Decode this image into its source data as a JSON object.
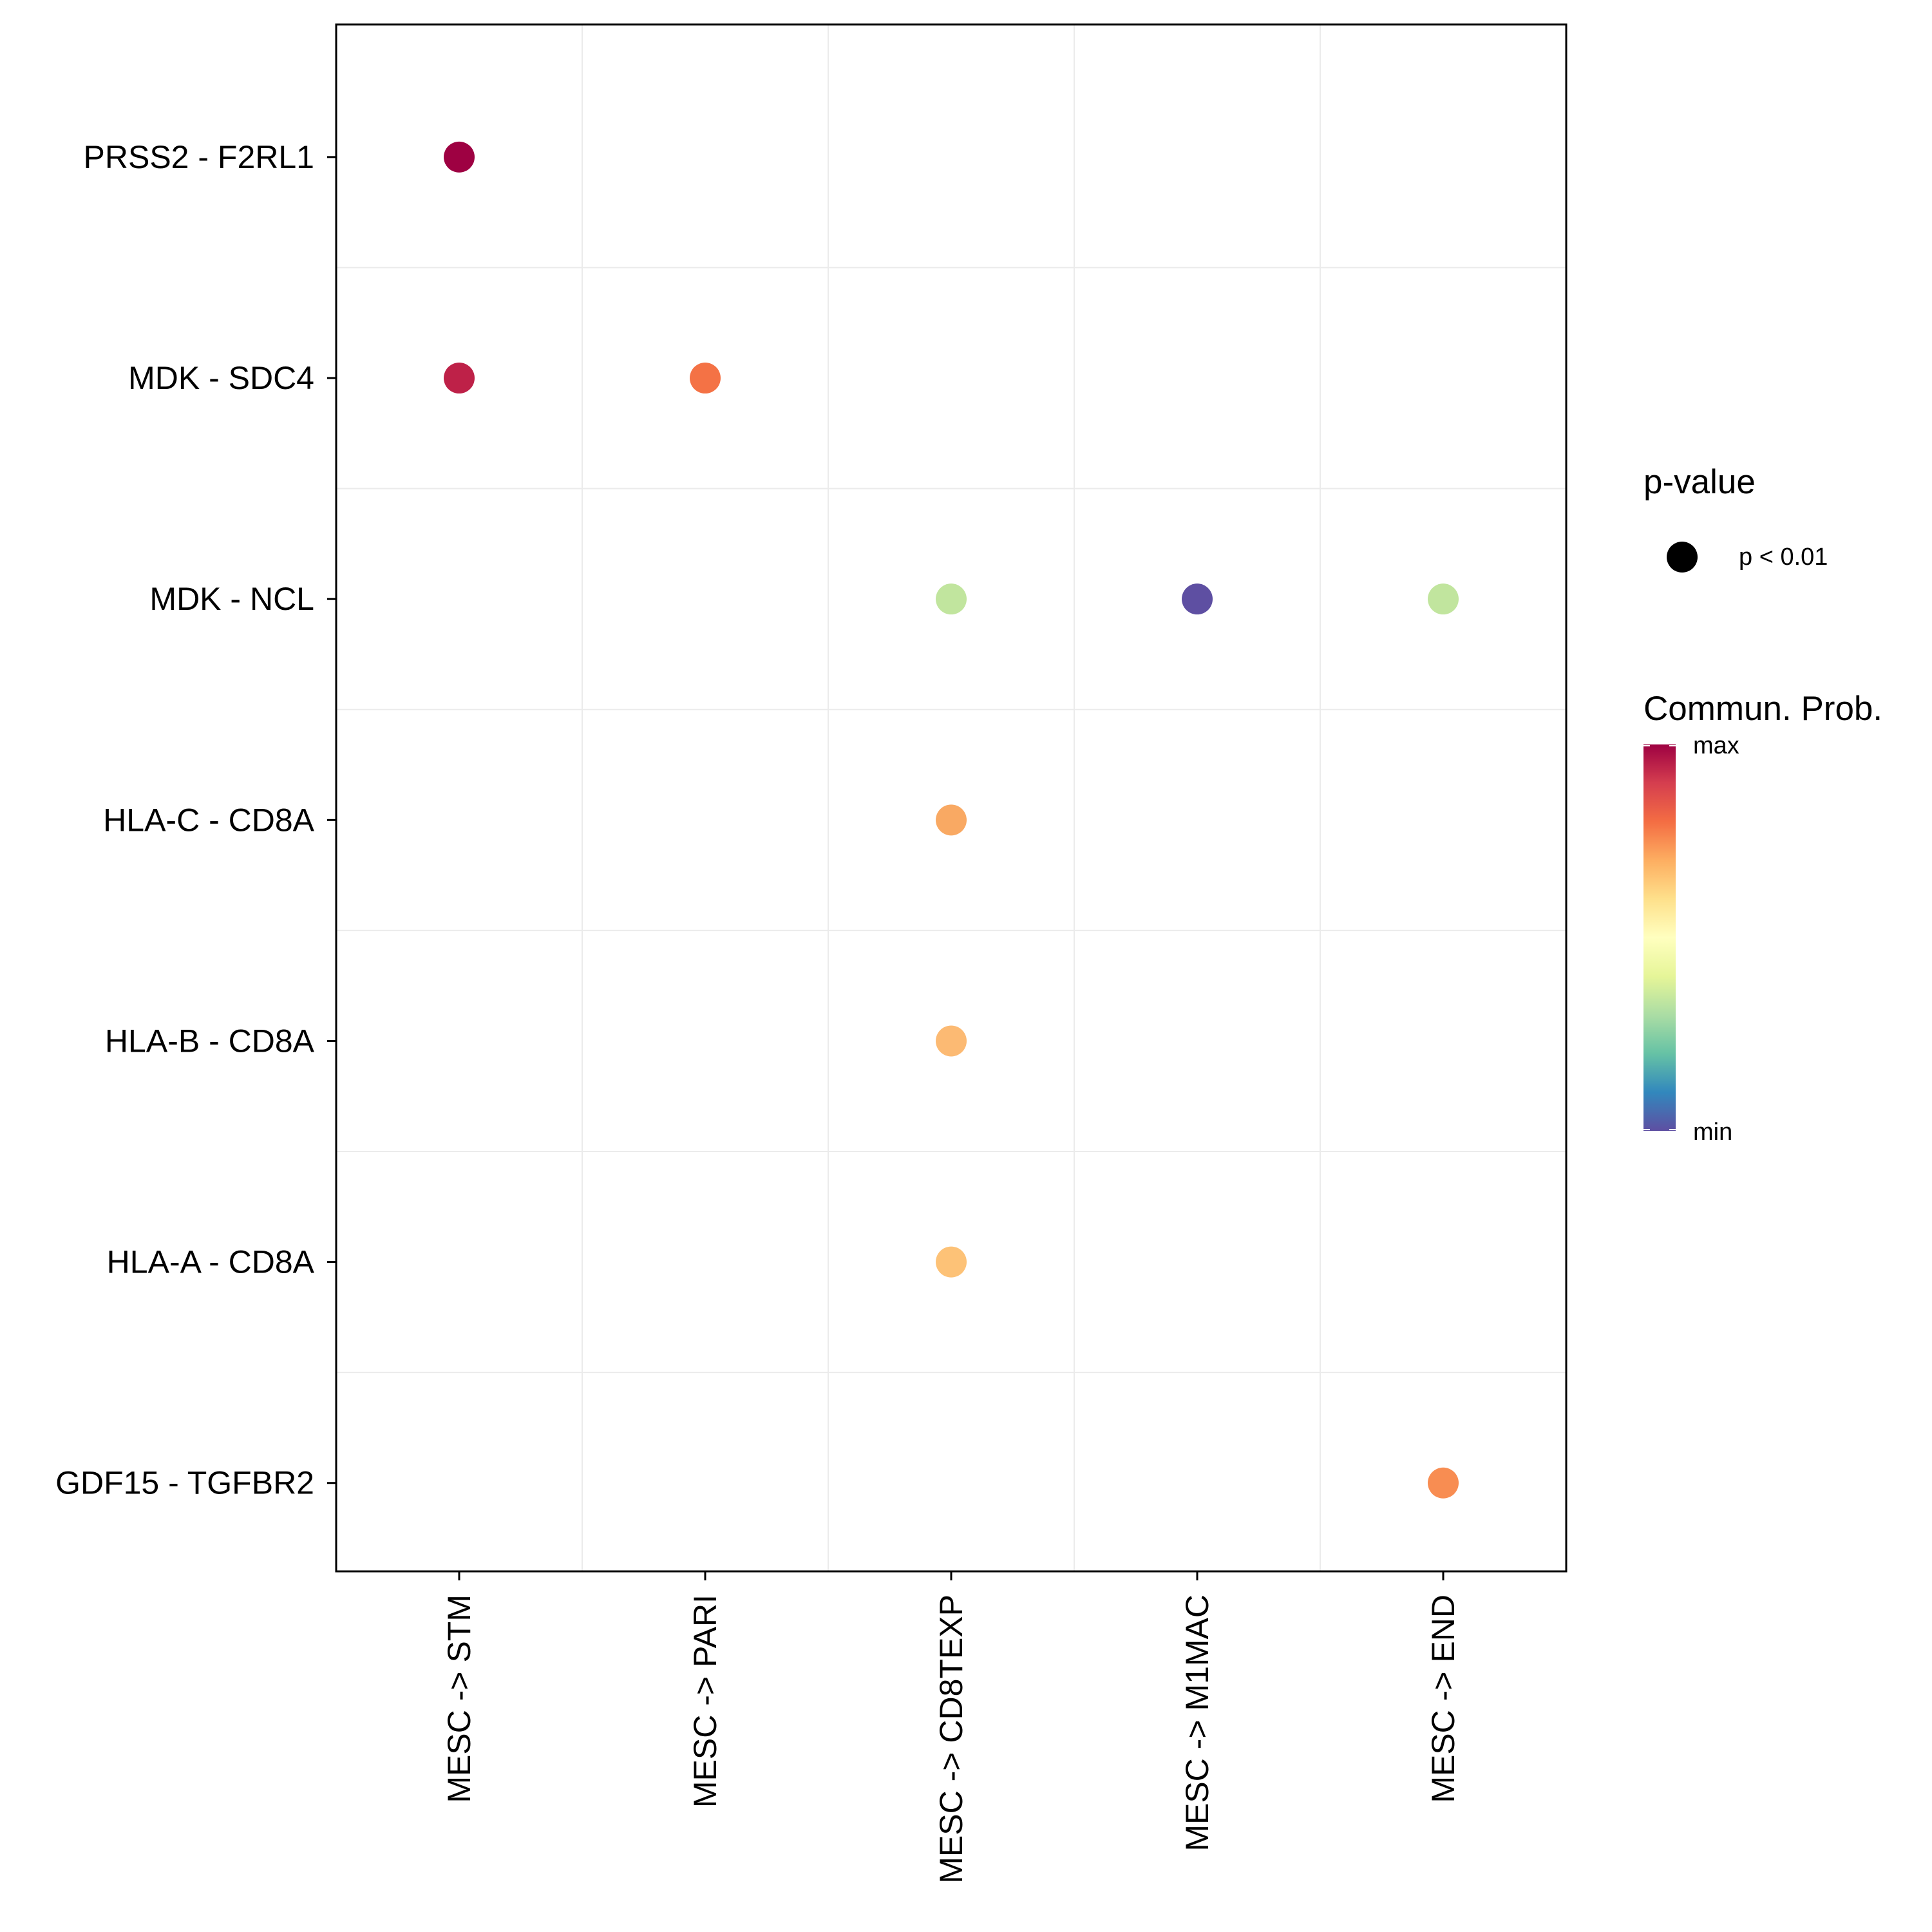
{
  "chart_data": {
    "type": "scatter",
    "title": "",
    "xlabel": "",
    "ylabel": "",
    "x_categories": [
      "MESC -> STM",
      "MESC -> PARI",
      "MESC -> CD8TEXP",
      "MESC -> M1MAC",
      "MESC -> END"
    ],
    "y_categories": [
      "PRSS2 - F2RL1",
      "MDK - SDC4",
      "MDK - NCL",
      "HLA-C - CD8A",
      "HLA-B - CD8A",
      "HLA-A - CD8A",
      "GDF15 - TGFBR2"
    ],
    "points": [
      {
        "x": "MESC -> STM",
        "y": "PRSS2 - F2RL1",
        "prob": 1.0,
        "color": "#9E0142",
        "pvalue": "p < 0.01"
      },
      {
        "x": "MESC -> STM",
        "y": "MDK - SDC4",
        "prob": 0.93,
        "color": "#BE2148",
        "pvalue": "p < 0.01"
      },
      {
        "x": "MESC -> PARI",
        "y": "MDK - SDC4",
        "prob": 0.78,
        "color": "#F47245",
        "pvalue": "p < 0.01"
      },
      {
        "x": "MESC -> CD8TEXP",
        "y": "MDK - NCL",
        "prob": 0.33,
        "color": "#C1E59E",
        "pvalue": "p < 0.01"
      },
      {
        "x": "MESC -> M1MAC",
        "y": "MDK - NCL",
        "prob": 0.0,
        "color": "#5E4FA2",
        "pvalue": "p < 0.01"
      },
      {
        "x": "MESC -> END",
        "y": "MDK - NCL",
        "prob": 0.33,
        "color": "#C1E59E",
        "pvalue": "p < 0.01"
      },
      {
        "x": "MESC -> CD8TEXP",
        "y": "HLA-C - CD8A",
        "prob": 0.7,
        "color": "#F9A963",
        "pvalue": "p < 0.01"
      },
      {
        "x": "MESC -> CD8TEXP",
        "y": "HLA-B - CD8A",
        "prob": 0.67,
        "color": "#FCBA73",
        "pvalue": "p < 0.01"
      },
      {
        "x": "MESC -> CD8TEXP",
        "y": "HLA-A - CD8A",
        "prob": 0.66,
        "color": "#FDC277",
        "pvalue": "p < 0.01"
      },
      {
        "x": "MESC -> END",
        "y": "GDF15 - TGFBR2",
        "prob": 0.74,
        "color": "#F88D52",
        "pvalue": "p < 0.01"
      }
    ],
    "grid": true,
    "legend_position": "right",
    "legend": {
      "pvalue_title": "p-value",
      "pvalue_entries": [
        "p < 0.01"
      ],
      "color_title": "Commun. Prob.",
      "color_max_label": "max",
      "color_min_label": "min",
      "colormap": [
        "#9E0142",
        "#D53E4F",
        "#F46D43",
        "#FDAE61",
        "#FEE08B",
        "#FFFFBF",
        "#E6F598",
        "#ABDDA4",
        "#66C2A5",
        "#3288BD",
        "#5E4FA2"
      ]
    },
    "colors": {
      "grid": "#EBEBEB",
      "axis": "#000000",
      "pvalue_marker": "#000000"
    }
  }
}
